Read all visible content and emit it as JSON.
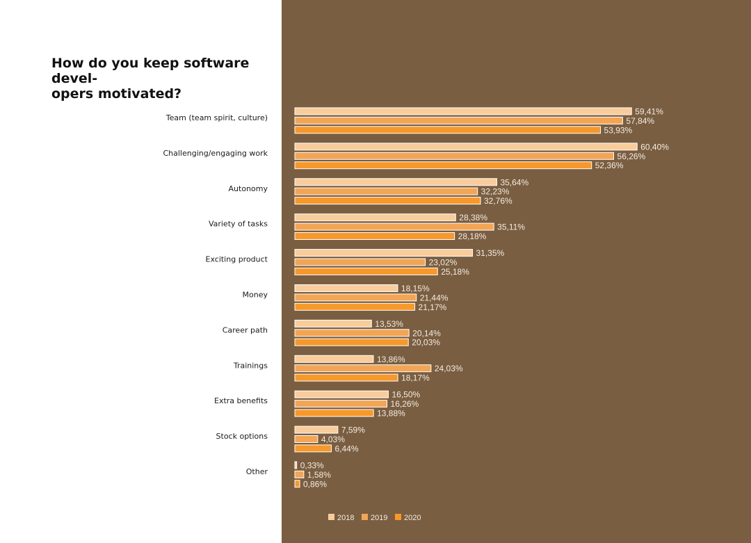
{
  "title": "How do you keep software devel-\nopers motivated?",
  "colors": {
    "panel": "#7a5e41",
    "bar_outline": "#ffffff"
  },
  "chart_data": {
    "type": "bar",
    "orientation": "horizontal",
    "title": "How do you keep software devel-\nopers motivated?",
    "categories": [
      "Team (team spirit, culture)",
      "Challenging/engaging work",
      "Autonomy",
      "Variety of tasks",
      "Exciting product",
      "Money",
      "Career path",
      "Trainings",
      "Extra benefits",
      "Stock options",
      "Other"
    ],
    "series": [
      {
        "name": "2018",
        "color": "#f9cc9b",
        "values": [
          59.41,
          60.4,
          35.64,
          28.38,
          31.35,
          18.15,
          13.53,
          13.86,
          16.5,
          7.59,
          0.33
        ],
        "labels": [
          "59,41%",
          "60,40%",
          "35,64%",
          "28,38%",
          "31,35%",
          "18,15%",
          "13,53%",
          "13,86%",
          "16,50%",
          "7,59%",
          "0,33%"
        ]
      },
      {
        "name": "2019",
        "color": "#f2a555",
        "values": [
          57.84,
          56.26,
          32.23,
          35.11,
          23.02,
          21.44,
          20.14,
          24.03,
          16.26,
          4.03,
          1.58
        ],
        "labels": [
          "57,84%",
          "56,26%",
          "32,23%",
          "35,11%",
          "23,02%",
          "21,44%",
          "20,14%",
          "24,03%",
          "16,26%",
          "4,03%",
          "1,58%"
        ]
      },
      {
        "name": "2020",
        "color": "#f7982b",
        "values": [
          53.93,
          52.36,
          32.76,
          28.18,
          25.18,
          21.17,
          20.03,
          18.17,
          13.88,
          6.44,
          0.86
        ],
        "labels": [
          "53,93%",
          "52,36%",
          "32,76%",
          "28,18%",
          "25,18%",
          "21,17%",
          "20,03%",
          "18,17%",
          "13,88%",
          "6,44%",
          "0,86%"
        ]
      }
    ],
    "xlim": [
      0,
      65
    ],
    "grid": false,
    "legend_position": "bottom"
  }
}
